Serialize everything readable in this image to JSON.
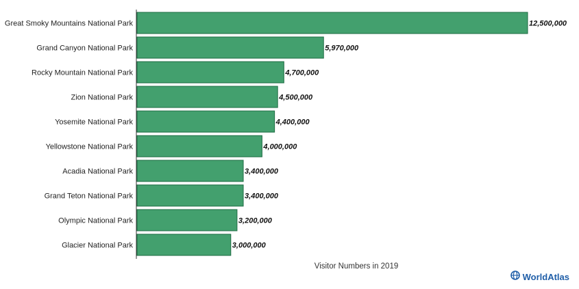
{
  "chart_data": {
    "type": "bar",
    "orientation": "horizontal",
    "categories": [
      "Great Smoky Mountains National Park",
      "Grand Canyon National Park",
      "Rocky Mountain National Park",
      "Zion National Park",
      "Yosemite National Park",
      "Yellowstone National Park",
      "Acadia National Park",
      "Grand Teton National Park",
      "Olympic National Park",
      "Glacier National Park"
    ],
    "values": [
      12500000,
      5970000,
      4700000,
      4500000,
      4400000,
      4000000,
      3400000,
      3400000,
      3200000,
      3000000
    ],
    "value_labels": [
      "12,500,000",
      "5,970,000",
      "4,700,000",
      "4,500,000",
      "4,400,000",
      "4,000,000",
      "3,400,000",
      "3,400,000",
      "3,200,000",
      "3,000,000"
    ],
    "xlabel": "Visitor Numbers in 2019",
    "xlim": [
      0,
      12500000
    ],
    "grid": false,
    "bar_color": "#43a06e",
    "bar_edge_color": "#1e6b43"
  },
  "brand": {
    "name": "WorldAtlas",
    "color": "#1f5ea8",
    "icon": "globe-icon"
  }
}
